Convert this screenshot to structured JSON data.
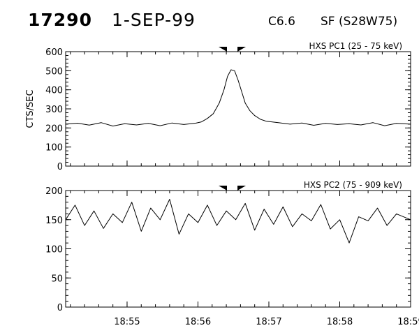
{
  "header": {
    "event_id": "17290",
    "date": "1-SEP-99",
    "flare_class": "C6.6",
    "flare_location": "SF (S28W75)"
  },
  "chart_data": [
    {
      "type": "line",
      "title": "HXS PC1 (25 - 75 keV)",
      "ylabel": "CTS/SEC",
      "xlabel": "",
      "xlim": [
        "18:54:08",
        "18:59:00"
      ],
      "ylim": [
        0,
        600
      ],
      "yticks": [
        0,
        100,
        200,
        300,
        400,
        500,
        600
      ],
      "ytick_labels": [
        "0",
        "100",
        "200",
        "300",
        "400",
        "500",
        "600"
      ],
      "xticks": [
        "18:55",
        "18:56",
        "18:57",
        "18:58",
        "18:59"
      ],
      "xtick_labels": [],
      "markers": [
        "18:56:21",
        "18:56:37"
      ],
      "grid": false,
      "series": [
        {
          "x": [
            "18:54:08",
            "18:54:18",
            "18:54:28",
            "18:54:38",
            "18:54:48",
            "18:54:58",
            "18:55:08",
            "18:55:18",
            "18:55:28",
            "18:55:38",
            "18:55:48",
            "18:55:58",
            "18:56:03",
            "18:56:08",
            "18:56:13",
            "18:56:18",
            "18:56:22",
            "18:56:25",
            "18:56:28",
            "18:56:31",
            "18:56:34",
            "18:56:37",
            "18:56:40",
            "18:56:44",
            "18:56:48",
            "18:56:53",
            "18:56:58",
            "18:57:08",
            "18:57:18",
            "18:57:28",
            "18:57:38",
            "18:57:48",
            "18:57:58",
            "18:58:08",
            "18:58:18",
            "18:58:28",
            "18:58:38",
            "18:58:48",
            "18:59:00"
          ],
          "values": [
            220,
            225,
            215,
            228,
            210,
            222,
            216,
            224,
            212,
            226,
            218,
            225,
            232,
            250,
            275,
            330,
            400,
            470,
            505,
            500,
            450,
            390,
            330,
            290,
            265,
            245,
            235,
            228,
            220,
            226,
            214,
            224,
            218,
            222,
            216,
            228,
            212,
            224,
            220
          ]
        }
      ]
    },
    {
      "type": "line",
      "title": "HXS PC2 (75 - 909 keV)",
      "ylabel": "",
      "xlabel": "",
      "xlim": [
        "18:54:08",
        "18:59:00"
      ],
      "ylim": [
        0,
        200
      ],
      "yticks": [
        0,
        50,
        100,
        150,
        200
      ],
      "ytick_labels": [
        "0",
        "50",
        "100",
        "150",
        "200"
      ],
      "xticks": [
        "18:55",
        "18:56",
        "18:57",
        "18:58",
        "18:59"
      ],
      "xtick_labels": [
        "18:55",
        "18:56",
        "18:57",
        "18:58",
        "18:59"
      ],
      "markers": [
        "18:56:21",
        "18:56:37"
      ],
      "grid": false,
      "series": [
        {
          "x": [
            "18:54:08",
            "18:54:16",
            "18:54:24",
            "18:54:32",
            "18:54:40",
            "18:54:48",
            "18:54:56",
            "18:55:04",
            "18:55:12",
            "18:55:20",
            "18:55:28",
            "18:55:36",
            "18:55:44",
            "18:55:52",
            "18:56:00",
            "18:56:08",
            "18:56:16",
            "18:56:24",
            "18:56:32",
            "18:56:40",
            "18:56:48",
            "18:56:56",
            "18:57:04",
            "18:57:12",
            "18:57:20",
            "18:57:28",
            "18:57:36",
            "18:57:44",
            "18:57:52",
            "18:58:00",
            "18:58:08",
            "18:58:16",
            "18:58:24",
            "18:58:32",
            "18:58:40",
            "18:58:48",
            "18:59:00"
          ],
          "values": [
            150,
            175,
            140,
            165,
            135,
            160,
            145,
            180,
            130,
            170,
            150,
            185,
            125,
            160,
            145,
            175,
            140,
            165,
            150,
            178,
            132,
            168,
            142,
            172,
            138,
            160,
            148,
            176,
            134,
            150,
            110,
            155,
            148,
            170,
            140,
            160,
            150
          ]
        }
      ]
    }
  ]
}
